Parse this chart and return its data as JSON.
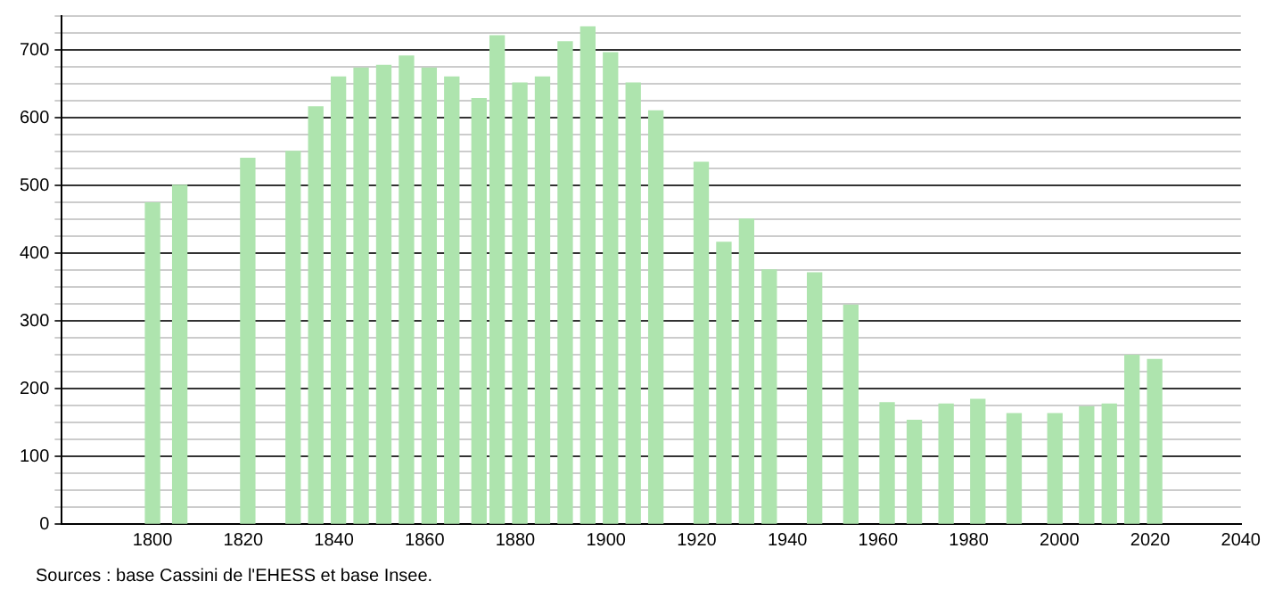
{
  "chart_data": {
    "type": "bar",
    "color": "#aee4ae",
    "x": [
      1800,
      1806,
      1821,
      1831,
      1836,
      1841,
      1846,
      1851,
      1856,
      1861,
      1866,
      1872,
      1876,
      1881,
      1886,
      1891,
      1896,
      1901,
      1906,
      1911,
      1921,
      1926,
      1931,
      1936,
      1946,
      1954,
      1962,
      1968,
      1975,
      1982,
      1990,
      1999,
      2006,
      2011,
      2016,
      2021
    ],
    "values": [
      474,
      500,
      540,
      550,
      616,
      660,
      673,
      677,
      691,
      673,
      660,
      628,
      721,
      651,
      660,
      712,
      734,
      696,
      651,
      610,
      534,
      416,
      450,
      375,
      371,
      323,
      179,
      153,
      177,
      184,
      163,
      163,
      173,
      177,
      249,
      243
    ],
    "xlim": [
      1780,
      2040
    ],
    "xticks": [
      1800,
      1820,
      1840,
      1860,
      1880,
      1900,
      1920,
      1940,
      1960,
      1980,
      2000,
      2020,
      2040
    ],
    "ylim": [
      0,
      750
    ],
    "yticks": [
      0,
      {
        "value": 25,
        "label": null
      },
      {
        "value": 50,
        "label": null
      },
      {
        "value": 75,
        "label": null
      },
      100,
      {
        "value": 125,
        "label": null
      },
      {
        "value": 150,
        "label": null
      },
      {
        "value": 175,
        "label": null
      },
      200,
      {
        "value": 225,
        "label": null
      },
      {
        "value": 250,
        "label": null
      },
      {
        "value": 275,
        "label": null
      },
      300,
      {
        "value": 325,
        "label": null
      },
      {
        "value": 350,
        "label": null
      },
      {
        "value": 375,
        "label": null
      },
      400,
      {
        "value": 425,
        "label": null
      },
      {
        "value": 450,
        "label": null
      },
      {
        "value": 475,
        "label": null
      },
      500,
      {
        "value": 525,
        "label": null
      },
      {
        "value": 550,
        "label": null
      },
      {
        "value": 575,
        "label": null
      },
      600,
      {
        "value": 625,
        "label": null
      },
      {
        "value": 650,
        "label": null
      },
      {
        "value": 675,
        "label": null
      },
      700,
      {
        "value": 725,
        "label": null
      },
      {
        "value": 750,
        "label": null
      }
    ],
    "grid": "y",
    "annotations": [
      "Sources : base Cassini de l'EHESS et base Insee."
    ]
  }
}
